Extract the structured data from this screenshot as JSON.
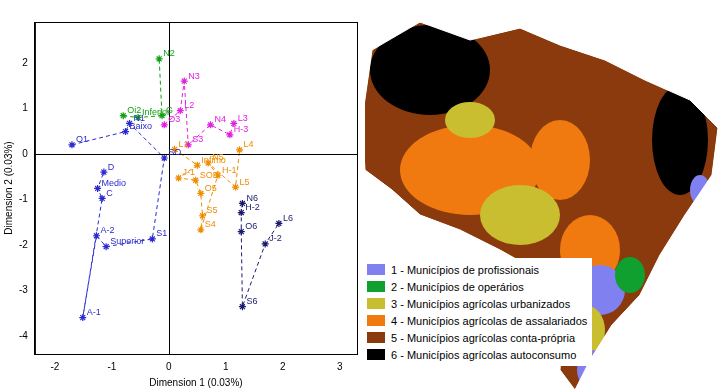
{
  "chart_data": {
    "type": "scatter",
    "x_label": "Dimension 1 (0.03%)",
    "y_label": "Dimension 2 (0.03%)",
    "xlim": [
      -2.35,
      3.3
    ],
    "xticks": [
      -2,
      -1,
      0,
      1,
      2,
      3
    ],
    "ylim": [
      -4.4,
      2.9
    ],
    "yticks": [
      -4,
      -3,
      -2,
      -1,
      0,
      1,
      2
    ],
    "grid": false,
    "marker": "star",
    "line_style": "dashed",
    "series": [
      {
        "color": "#2a2ad0",
        "labels": [
          "O1",
          "Baixo",
          "N1",
          "SO",
          "S1",
          "Superior",
          "A-2",
          "A-1",
          "C",
          "Medio",
          "D"
        ],
        "x": [
          -1.7,
          -0.76,
          -0.69,
          -0.08,
          -0.29,
          -1.1,
          -1.27,
          -1.51,
          -1.17,
          -1.25,
          -1.14
        ],
        "y": [
          0.2,
          0.49,
          0.67,
          -0.09,
          -1.87,
          -2.04,
          -1.8,
          -3.6,
          -0.98,
          -0.76,
          -0.4
        ]
      },
      {
        "color": "#10a010",
        "labels": [
          "Oi2",
          "Inferior",
          "G",
          "N2"
        ],
        "x": [
          -0.8,
          -0.54,
          -0.12,
          -0.17
        ],
        "y": [
          0.84,
          0.8,
          0.84,
          2.09
        ]
      },
      {
        "color": "#e020e0",
        "labels": [
          "O3",
          "L2",
          "N3",
          "S3",
          "N4",
          "H-3",
          "L3"
        ],
        "x": [
          -0.08,
          0.2,
          0.27,
          0.34,
          0.73,
          1.07,
          1.14
        ],
        "y": [
          0.64,
          0.95,
          1.6,
          0.2,
          0.64,
          0.42,
          0.67
        ]
      },
      {
        "color": "#f08c00",
        "labels": [
          "L1",
          "Infimo",
          "J-1",
          "SOE",
          "O5",
          "S5",
          "S4",
          "H-1",
          "N5",
          "L5",
          "L4"
        ],
        "x": [
          0.1,
          0.5,
          0.17,
          0.47,
          0.56,
          0.59,
          0.56,
          0.86,
          0.69,
          1.17,
          1.24
        ],
        "y": [
          0.1,
          -0.25,
          -0.53,
          -0.58,
          -0.87,
          -1.36,
          -1.67,
          -0.47,
          -0.2,
          -0.73,
          0.09
        ]
      },
      {
        "color": "#1a1a70",
        "labels": [
          "N6",
          "H-2",
          "O6",
          "S6",
          "J-2",
          "L6"
        ],
        "x": [
          1.29,
          1.27,
          1.27,
          1.29,
          1.69,
          1.93
        ],
        "y": [
          -1.09,
          -1.29,
          -1.71,
          -3.36,
          -1.98,
          -1.53
        ]
      }
    ]
  },
  "map": {
    "legend": [
      {
        "label": "1 - Municípios de profissionais",
        "color": "#8080f0"
      },
      {
        "label": "2 - Municípios de operários",
        "color": "#10a030"
      },
      {
        "label": "3 - Municípios agrícolas urbanizados",
        "color": "#c8be30"
      },
      {
        "label": "4 - Municípios agrícolas de assalariados",
        "color": "#f07a10"
      },
      {
        "label": "5 - Municípios agrícolas conta-própria",
        "color": "#8a3a0c"
      },
      {
        "label": "6 - Municípios agrícolas autoconsumo",
        "color": "#000000"
      }
    ]
  }
}
